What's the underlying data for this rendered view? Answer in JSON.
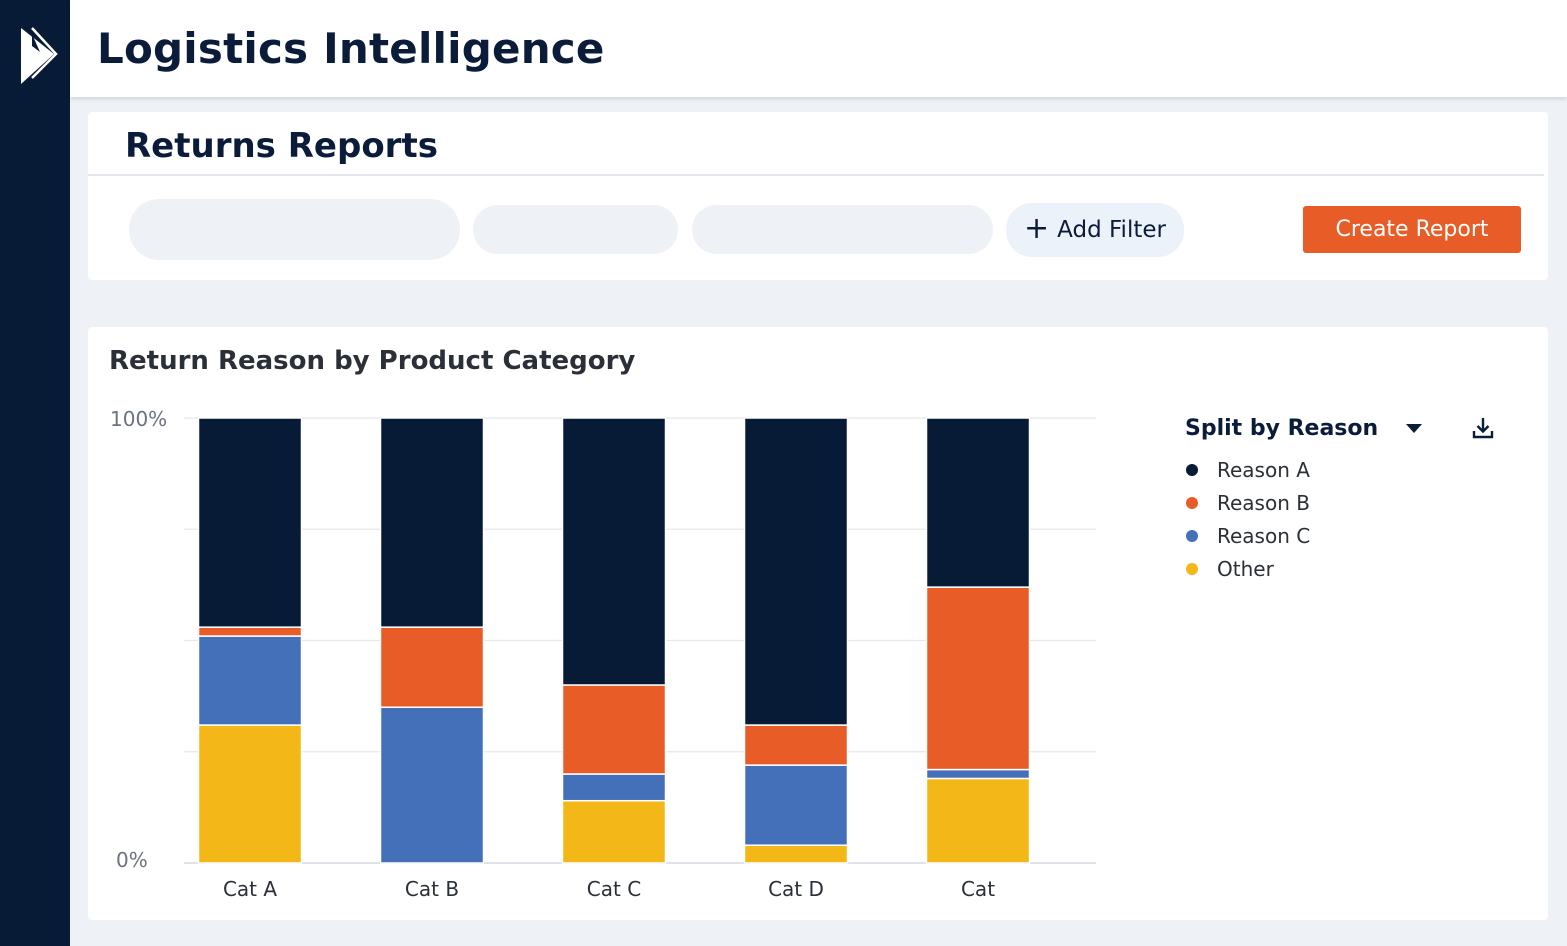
{
  "app": {
    "title": "Logistics Intelligence",
    "logo_icon": "play-logo-icon"
  },
  "page": {
    "title": "Returns Reports"
  },
  "toolbar": {
    "add_filter_label": "Add Filter",
    "add_filter_icon": "plus-icon",
    "create_report_label": "Create Report"
  },
  "colors": {
    "sidebar": "#071b37",
    "accent": "#e85c27",
    "reason_a": "#071b37",
    "reason_b": "#e85c27",
    "reason_c": "#4370b8",
    "other": "#f4b718"
  },
  "legend": {
    "title": "Split by Reason",
    "dropdown_icon": "caret-down-icon",
    "download_icon": "download-icon"
  },
  "chart_data": {
    "type": "bar",
    "stacked": true,
    "title": "Return Reason by Product Category",
    "xlabel": "",
    "ylabel": "",
    "ylim": [
      0,
      100
    ],
    "y_tick_labels": [
      "0%",
      "100%"
    ],
    "grid": true,
    "legend_position": "right",
    "categories": [
      "Cat A",
      "Cat B",
      "Cat C",
      "Cat D",
      "Cat"
    ],
    "series": [
      {
        "name": "Other",
        "color": "#f4b718",
        "values": [
          31,
          0,
          14,
          4,
          19
        ]
      },
      {
        "name": "Reason C",
        "color": "#4370b8",
        "values": [
          20,
          35,
          6,
          18,
          2
        ]
      },
      {
        "name": "Reason B",
        "color": "#e85c27",
        "values": [
          2,
          18,
          20,
          9,
          41
        ]
      },
      {
        "name": "Reason A",
        "color": "#071b37",
        "values": [
          47,
          47,
          60,
          69,
          38
        ]
      }
    ],
    "legend_order": [
      "Reason A",
      "Reason B",
      "Reason C",
      "Other"
    ]
  }
}
